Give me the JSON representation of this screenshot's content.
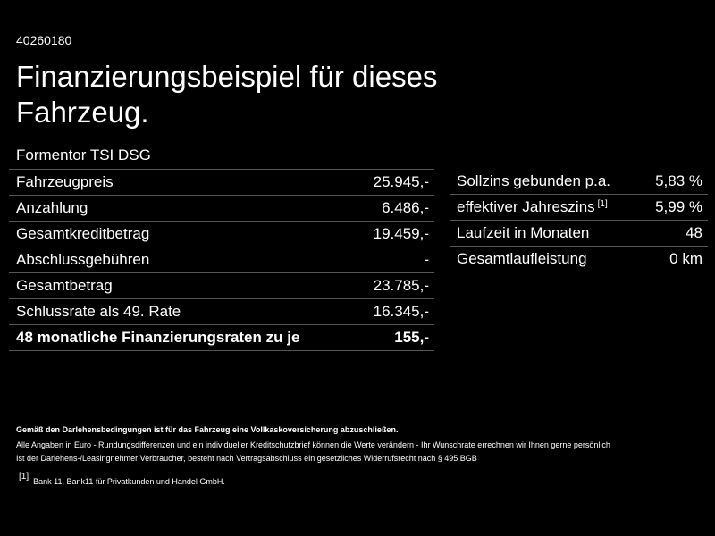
{
  "header": {
    "id": "40260180",
    "title": "Finanzierungsbeispiel für dieses Fahrzeug.",
    "subtitle": "Formentor TSI DSG"
  },
  "table": {
    "rows": [
      [
        "Fahrzeugpreis",
        "25.945,-"
      ],
      [
        "Anzahlung",
        "6.486,-"
      ],
      [
        "Gesamtkreditbetrag",
        "19.459,-"
      ],
      [
        "Abschlussgebühren",
        "-"
      ],
      [
        "Gesamtbetrag",
        "23.785,-"
      ],
      [
        "Schlussrate als 49. Rate",
        "16.345,-"
      ]
    ],
    "total": [
      "48 monatliche Finanzierungsraten zu je",
      "155,-"
    ]
  },
  "rates": {
    "rows": [
      [
        "Sollzins gebunden p.a.",
        "5,83 %"
      ],
      [
        "effektiver Jahreszins",
        "5,99 %"
      ],
      [
        "Laufzeit in Monaten",
        "48"
      ],
      [
        "Gesamtlaufleistung",
        "0 km"
      ]
    ],
    "footnote_ref": "[1]"
  },
  "notes": {
    "bold": "Gemäß den Darlehensbedingungen ist für das Fahrzeug eine Vollkaskoversicherung abzuschließen.",
    "lines": [
      "Alle Angaben in Euro - Rundungsdifferenzen und ein individueller Kreditschutzbrief können die Werte verändern - Ihr Wunschrate errechnen wir Ihnen gerne persönlich",
      "Ist der Darlehens-/Leasingnehmer Verbraucher, besteht nach Vertragsabschluss ein gesetzliches Widerrufsrecht nach § 495 BGB"
    ],
    "footnote": {
      "ref": "[1]",
      "text": "Bank 11, Bank11 für Privatkunden und Handel GmbH."
    }
  }
}
